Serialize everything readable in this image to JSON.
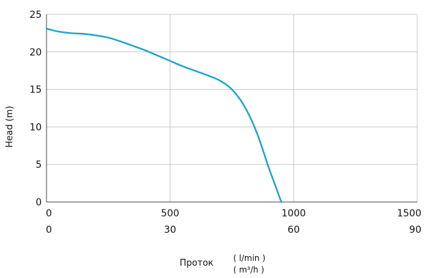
{
  "chart_data": {
    "type": "line",
    "ylabel": "Head (m)",
    "xlabel": "Проток",
    "xlabel_units_top": "( l/min )",
    "xlabel_units_bottom": "( m³/h )",
    "xlim": [
      0,
      1500
    ],
    "ylim": [
      0,
      25
    ],
    "x_ticks": [
      0,
      500,
      1000,
      1500
    ],
    "x_tick_labels": [
      "0",
      "500",
      "1000",
      "1500"
    ],
    "x2_tick_labels": [
      "0",
      "30",
      "60",
      "90"
    ],
    "y_ticks": [
      0,
      5,
      10,
      15,
      20,
      25
    ],
    "y_tick_labels": [
      "0",
      "5",
      "10",
      "15",
      "20",
      "25"
    ],
    "grid": true,
    "series": [
      {
        "color": "#1aa3cc",
        "x": [
          0,
          50,
          100,
          150,
          200,
          250,
          300,
          350,
          400,
          450,
          500,
          550,
          600,
          650,
          700,
          750,
          800,
          850,
          900,
          930,
          950
        ],
        "y": [
          23.1,
          22.7,
          22.5,
          22.4,
          22.2,
          21.9,
          21.4,
          20.8,
          20.2,
          19.5,
          18.8,
          18.1,
          17.5,
          16.9,
          16.2,
          15.0,
          12.8,
          9.3,
          4.5,
          1.8,
          0
        ]
      }
    ]
  }
}
